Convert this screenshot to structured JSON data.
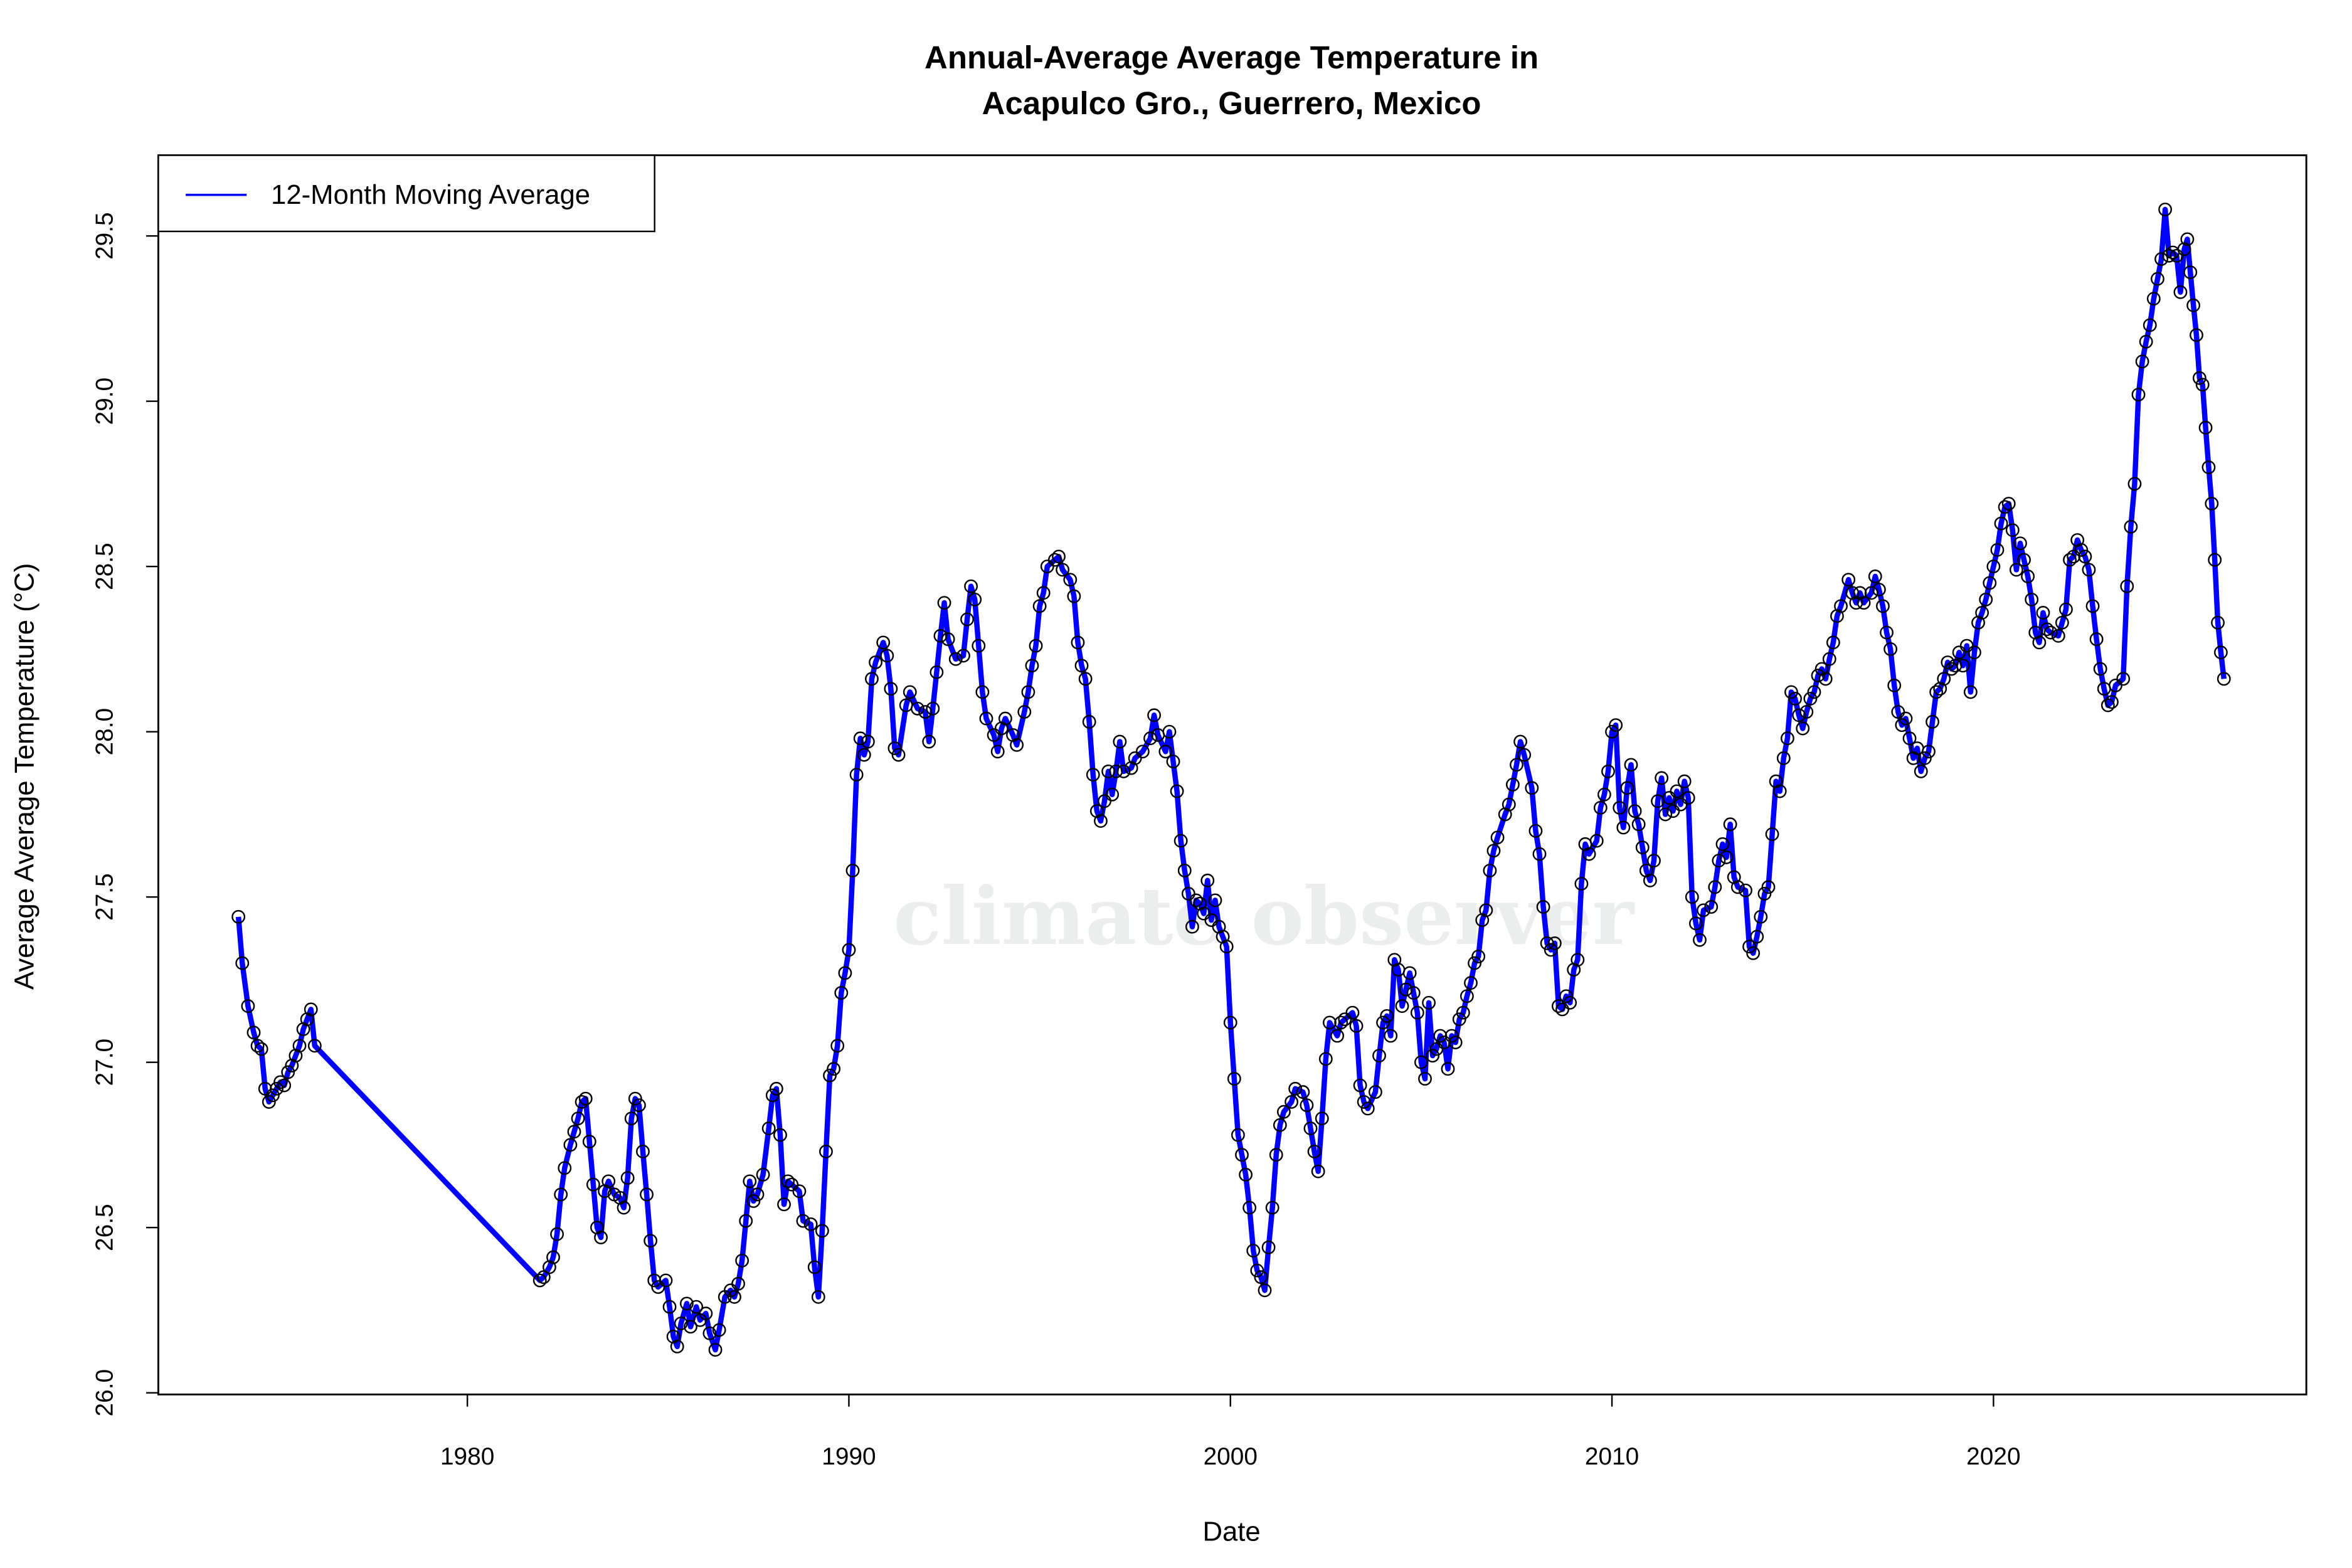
{
  "chart_data": {
    "type": "line",
    "title": [
      "Annual-Average Average Temperature in",
      "Acapulco  Gro., Guerrero, Mexico"
    ],
    "xlabel": "Date",
    "ylabel": "Average Average Temperature (°C)",
    "watermark": "climate observer",
    "legend": "top-left",
    "xlim": [
      1971.9,
      2028.2
    ],
    "xticks": [
      1980,
      1990,
      2000,
      2010,
      2020
    ],
    "ylim": [
      25.995,
      29.744
    ],
    "yticks": [
      {
        "value": 26,
        "label": "26.0"
      },
      {
        "value": 26.5,
        "label": "26.5"
      },
      {
        "value": 27,
        "label": "27.0"
      },
      {
        "value": 27.5,
        "label": "27.5"
      },
      {
        "value": 28,
        "label": "28.0"
      },
      {
        "value": 28.5,
        "label": "28.5"
      },
      {
        "value": 29,
        "label": "29.0"
      },
      {
        "value": 29.5,
        "label": "29.5"
      }
    ],
    "x": [
      1974.0,
      1974.1,
      1974.25,
      1974.4,
      1974.5,
      1974.6,
      1974.7,
      1974.8,
      1974.9,
      1975.0,
      1975.1,
      1975.2,
      1975.3,
      1975.4,
      1975.5,
      1975.6,
      1975.7,
      1975.8,
      1975.9,
      1976.0,
      1981.9,
      1982.0,
      1982.15,
      1982.25,
      1982.35,
      1982.45,
      1982.55,
      1982.7,
      1982.8,
      1982.9,
      1983.0,
      1983.1,
      1983.2,
      1983.3,
      1983.4,
      1983.5,
      1983.6,
      1983.7,
      1983.85,
      1984.0,
      1984.1,
      1984.2,
      1984.3,
      1984.4,
      1984.5,
      1984.6,
      1984.7,
      1984.8,
      1984.9,
      1985.0,
      1985.2,
      1985.3,
      1985.4,
      1985.5,
      1985.6,
      1985.75,
      1985.85,
      1986.0,
      1986.1,
      1986.25,
      1986.35,
      1986.5,
      1986.6,
      1986.75,
      1986.9,
      1987.0,
      1987.1,
      1987.2,
      1987.3,
      1987.4,
      1987.5,
      1987.6,
      1987.75,
      1987.9,
      1988.0,
      1988.1,
      1988.2,
      1988.3,
      1988.4,
      1988.5,
      1988.7,
      1988.8,
      1989.0,
      1989.1,
      1989.2,
      1989.3,
      1989.4,
      1989.5,
      1989.6,
      1989.7,
      1989.8,
      1989.9,
      1990.0,
      1990.1,
      1990.2,
      1990.3,
      1990.4,
      1990.5,
      1990.6,
      1990.7,
      1990.9,
      1991.0,
      1991.1,
      1991.2,
      1991.3,
      1991.5,
      1991.6,
      1991.8,
      1992.0,
      1992.1,
      1992.2,
      1992.3,
      1992.4,
      1992.5,
      1992.6,
      1992.8,
      1993.0,
      1993.1,
      1993.2,
      1993.3,
      1993.4,
      1993.5,
      1993.6,
      1993.8,
      1993.9,
      1994.0,
      1994.1,
      1994.3,
      1994.4,
      1994.6,
      1994.7,
      1994.8,
      1994.9,
      1995.0,
      1995.1,
      1995.2,
      1995.4,
      1995.5,
      1995.6,
      1995.8,
      1995.9,
      1996.0,
      1996.1,
      1996.2,
      1996.3,
      1996.4,
      1996.5,
      1996.6,
      1996.7,
      1996.8,
      1996.9,
      1997.0,
      1997.1,
      1997.2,
      1997.4,
      1997.5,
      1997.7,
      1997.9,
      1998.0,
      1998.1,
      1998.3,
      1998.4,
      1998.5,
      1998.6,
      1998.7,
      1998.8,
      1998.9,
      1999.0,
      1999.1,
      1999.2,
      1999.3,
      1999.4,
      1999.5,
      1999.6,
      1999.7,
      1999.8,
      1999.9,
      2000.0,
      2000.1,
      2000.2,
      2000.3,
      2000.4,
      2000.5,
      2000.6,
      2000.7,
      2000.8,
      2000.9,
      2001.0,
      2001.1,
      2001.2,
      2001.3,
      2001.4,
      2001.6,
      2001.7,
      2001.9,
      2002.0,
      2002.1,
      2002.2,
      2002.3,
      2002.4,
      2002.5,
      2002.6,
      2002.8,
      2002.9,
      2003.0,
      2003.2,
      2003.3,
      2003.4,
      2003.5,
      2003.6,
      2003.8,
      2003.9,
      2004.0,
      2004.1,
      2004.2,
      2004.3,
      2004.4,
      2004.5,
      2004.6,
      2004.7,
      2004.8,
      2004.9,
      2005.0,
      2005.1,
      2005.2,
      2005.3,
      2005.4,
      2005.5,
      2005.6,
      2005.7,
      2005.8,
      2005.9,
      2006.0,
      2006.1,
      2006.2,
      2006.3,
      2006.4,
      2006.5,
      2006.6,
      2006.7,
      2006.8,
      2006.9,
      2007.0,
      2007.2,
      2007.3,
      2007.4,
      2007.5,
      2007.6,
      2007.7,
      2007.9,
      2008.0,
      2008.1,
      2008.2,
      2008.3,
      2008.4,
      2008.5,
      2008.6,
      2008.7,
      2008.8,
      2008.9,
      2009.0,
      2009.1,
      2009.2,
      2009.3,
      2009.4,
      2009.6,
      2009.7,
      2009.8,
      2009.9,
      2010.0,
      2010.1,
      2010.2,
      2010.3,
      2010.4,
      2010.5,
      2010.6,
      2010.7,
      2010.8,
      2010.9,
      2011.0,
      2011.1,
      2011.2,
      2011.3,
      2011.4,
      2011.5,
      2011.6,
      2011.7,
      2011.8,
      2011.9,
      2012.0,
      2012.1,
      2012.2,
      2012.3,
      2012.4,
      2012.6,
      2012.7,
      2012.8,
      2012.9,
      2013.0,
      2013.1,
      2013.2,
      2013.3,
      2013.5,
      2013.6,
      2013.7,
      2013.8,
      2013.9,
      2014.0,
      2014.1,
      2014.2,
      2014.3,
      2014.4,
      2014.5,
      2014.6,
      2014.7,
      2014.8,
      2014.9,
      2015.0,
      2015.1,
      2015.2,
      2015.3,
      2015.4,
      2015.5,
      2015.6,
      2015.7,
      2015.8,
      2015.9,
      2016.0,
      2016.2,
      2016.3,
      2016.4,
      2016.5,
      2016.6,
      2016.8,
      2016.9,
      2017.0,
      2017.1,
      2017.2,
      2017.3,
      2017.4,
      2017.5,
      2017.6,
      2017.7,
      2017.8,
      2017.9,
      2018.0,
      2018.1,
      2018.2,
      2018.3,
      2018.4,
      2018.5,
      2018.6,
      2018.7,
      2018.8,
      2018.9,
      2019.0,
      2019.1,
      2019.2,
      2019.3,
      2019.4,
      2019.5,
      2019.6,
      2019.7,
      2019.8,
      2019.9,
      2020.0,
      2020.1,
      2020.2,
      2020.3,
      2020.4,
      2020.5,
      2020.6,
      2020.7,
      2020.8,
      2020.9,
      2021.0,
      2021.1,
      2021.2,
      2021.3,
      2021.4,
      2021.5,
      2021.7,
      2021.8,
      2021.9,
      2022.0,
      2022.1,
      2022.2,
      2022.3,
      2022.4,
      2022.5,
      2022.6,
      2022.7,
      2022.8,
      2022.9,
      2023.0,
      2023.1,
      2023.2,
      2023.4,
      2023.5,
      2023.6,
      2023.7,
      2023.8,
      2023.9,
      2024.0,
      2024.1,
      2024.2,
      2024.3,
      2024.4,
      2024.5,
      2024.6,
      2024.7,
      2024.8,
      2024.9,
      2025.0,
      2025.08,
      2025.16,
      2025.24,
      2025.32,
      2025.4,
      2025.48,
      2025.56,
      2025.64,
      2025.72,
      2025.8,
      2025.88,
      2025.96,
      2026.04
    ],
    "series": [
      {
        "name": "12-Month Moving Average",
        "color": "#0000ff",
        "values": [
          27.44,
          27.3,
          27.17,
          27.09,
          27.05,
          27.04,
          26.92,
          26.88,
          26.9,
          26.92,
          26.94,
          26.93,
          26.97,
          26.99,
          27.02,
          27.05,
          27.1,
          27.13,
          27.16,
          27.05,
          26.34,
          26.35,
          26.38,
          26.41,
          26.48,
          26.6,
          26.68,
          26.75,
          26.79,
          26.83,
          26.88,
          26.89,
          26.76,
          26.63,
          26.5,
          26.47,
          26.61,
          26.64,
          26.6,
          26.59,
          26.56,
          26.65,
          26.83,
          26.89,
          26.87,
          26.73,
          26.6,
          26.46,
          26.34,
          26.32,
          26.34,
          26.26,
          26.17,
          26.14,
          26.21,
          26.27,
          26.2,
          26.26,
          26.22,
          26.24,
          26.18,
          26.13,
          26.19,
          26.29,
          26.31,
          26.29,
          26.33,
          26.4,
          26.52,
          26.64,
          26.58,
          26.6,
          26.66,
          26.8,
          26.9,
          26.92,
          26.78,
          26.57,
          26.64,
          26.63,
          26.61,
          26.52,
          26.51,
          26.38,
          26.29,
          26.49,
          26.73,
          26.96,
          26.98,
          27.05,
          27.21,
          27.27,
          27.34,
          27.58,
          27.87,
          27.98,
          27.93,
          27.97,
          28.16,
          28.21,
          28.27,
          28.23,
          28.13,
          27.95,
          27.93,
          28.08,
          28.12,
          28.07,
          28.06,
          27.97,
          28.07,
          28.18,
          28.29,
          28.39,
          28.28,
          28.22,
          28.23,
          28.34,
          28.44,
          28.4,
          28.26,
          28.12,
          28.04,
          27.99,
          27.94,
          28.01,
          28.04,
          27.99,
          27.96,
          28.06,
          28.12,
          28.2,
          28.26,
          28.38,
          28.42,
          28.5,
          28.52,
          28.53,
          28.49,
          28.46,
          28.41,
          28.27,
          28.2,
          28.16,
          28.03,
          27.87,
          27.76,
          27.73,
          27.79,
          27.88,
          27.81,
          27.88,
          27.97,
          27.88,
          27.89,
          27.92,
          27.94,
          27.98,
          28.05,
          27.99,
          27.94,
          28.0,
          27.91,
          27.82,
          27.67,
          27.58,
          27.51,
          27.41,
          27.49,
          27.48,
          27.45,
          27.55,
          27.43,
          27.49,
          27.41,
          27.38,
          27.35,
          27.12,
          26.95,
          26.78,
          26.72,
          26.66,
          26.56,
          26.43,
          26.37,
          26.35,
          26.31,
          26.44,
          26.56,
          26.72,
          26.81,
          26.85,
          26.88,
          26.92,
          26.91,
          26.87,
          26.8,
          26.73,
          26.67,
          26.83,
          27.01,
          27.12,
          27.08,
          27.12,
          27.13,
          27.15,
          27.11,
          26.93,
          26.88,
          26.86,
          26.91,
          27.02,
          27.12,
          27.14,
          27.08,
          27.31,
          27.28,
          27.17,
          27.22,
          27.27,
          27.21,
          27.15,
          27.0,
          26.95,
          27.18,
          27.02,
          27.04,
          27.08,
          27.06,
          26.98,
          27.08,
          27.06,
          27.13,
          27.15,
          27.2,
          27.24,
          27.3,
          27.32,
          27.43,
          27.46,
          27.58,
          27.64,
          27.68,
          27.75,
          27.78,
          27.84,
          27.9,
          27.97,
          27.93,
          27.83,
          27.7,
          27.63,
          27.47,
          27.36,
          27.34,
          27.36,
          27.17,
          27.16,
          27.2,
          27.18,
          27.28,
          27.31,
          27.54,
          27.66,
          27.63,
          27.67,
          27.77,
          27.81,
          27.88,
          28.0,
          28.02,
          27.77,
          27.71,
          27.83,
          27.9,
          27.76,
          27.72,
          27.65,
          27.58,
          27.55,
          27.61,
          27.79,
          27.86,
          27.75,
          27.8,
          27.76,
          27.82,
          27.78,
          27.85,
          27.8,
          27.5,
          27.42,
          27.37,
          27.46,
          27.47,
          27.53,
          27.61,
          27.66,
          27.62,
          27.72,
          27.56,
          27.53,
          27.52,
          27.35,
          27.33,
          27.38,
          27.44,
          27.51,
          27.53,
          27.69,
          27.85,
          27.82,
          27.92,
          27.98,
          28.12,
          28.1,
          28.05,
          28.01,
          28.06,
          28.1,
          28.12,
          28.17,
          28.19,
          28.16,
          28.22,
          28.27,
          28.35,
          28.38,
          28.46,
          28.42,
          28.39,
          28.42,
          28.39,
          28.42,
          28.47,
          28.43,
          28.38,
          28.3,
          28.25,
          28.14,
          28.06,
          28.02,
          28.04,
          27.98,
          27.92,
          27.95,
          27.88,
          27.92,
          27.94,
          28.03,
          28.12,
          28.13,
          28.16,
          28.21,
          28.19,
          28.2,
          28.24,
          28.2,
          28.26,
          28.12,
          28.24,
          28.33,
          28.36,
          28.4,
          28.45,
          28.5,
          28.55,
          28.63,
          28.68,
          28.69,
          28.61,
          28.49,
          28.57,
          28.52,
          28.47,
          28.4,
          28.3,
          28.27,
          28.36,
          28.31,
          28.3,
          28.29,
          28.33,
          28.37,
          28.52,
          28.53,
          28.58,
          28.55,
          28.53,
          28.49,
          28.38,
          28.28,
          28.19,
          28.13,
          28.08,
          28.09,
          28.14,
          28.16,
          28.44,
          28.62,
          28.75,
          29.02,
          29.12,
          29.18,
          29.23,
          29.31,
          29.37,
          29.43,
          29.58,
          29.44,
          29.45,
          29.44,
          29.33,
          29.46,
          29.49,
          29.39,
          29.29,
          29.2,
          29.07,
          29.05,
          28.92,
          28.8,
          28.69,
          28.52,
          28.33,
          28.24,
          28.16
        ]
      }
    ]
  }
}
